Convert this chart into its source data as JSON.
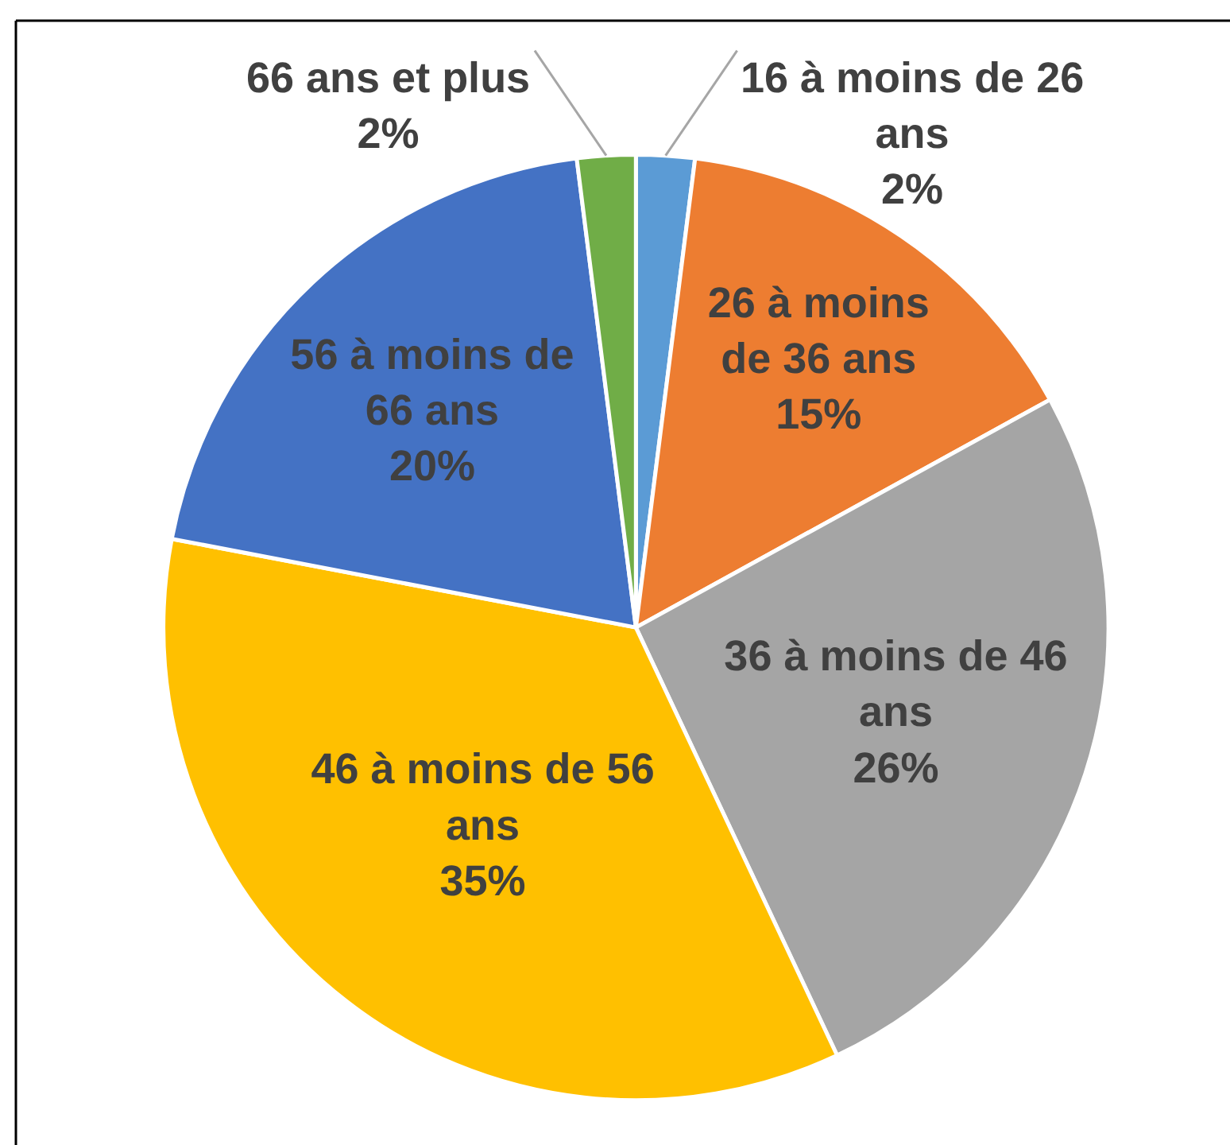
{
  "chart_data": {
    "type": "pie",
    "categories": [
      "16 à moins de 26 ans",
      "26 à moins de 36 ans",
      "36 à moins de 46 ans",
      "46 à moins de 56 ans",
      "56 à moins de 66 ans",
      "66 ans et plus"
    ],
    "values": [
      2,
      15,
      26,
      35,
      20,
      2
    ],
    "value_labels": [
      "2%",
      "15%",
      "26%",
      "35%",
      "20%",
      "2%"
    ],
    "colors": [
      "#5b9bd5",
      "#ed7d31",
      "#a5a5a5",
      "#ffc000",
      "#4472c4",
      "#70ad47"
    ]
  }
}
